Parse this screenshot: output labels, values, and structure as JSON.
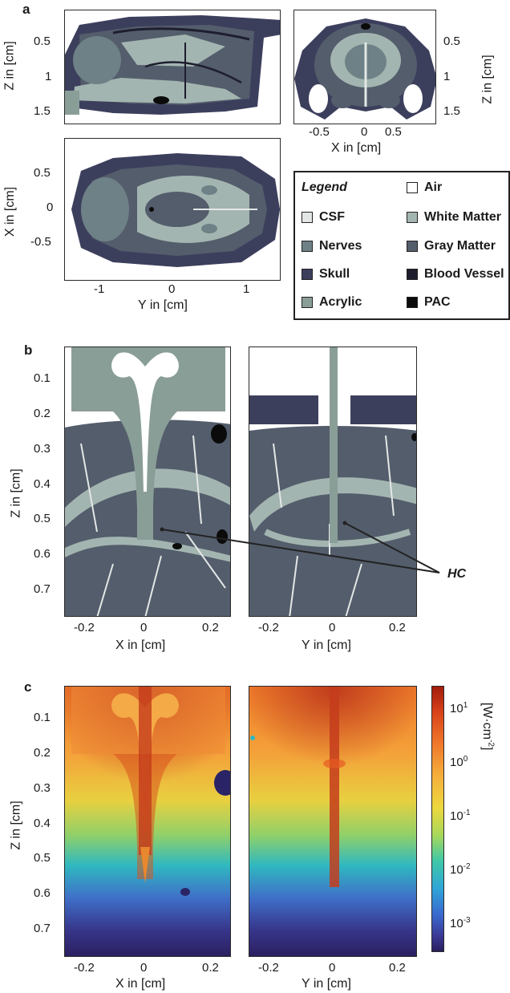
{
  "panels": {
    "a": {
      "letter": "a",
      "sagittal": {
        "yticks": [
          "0.5",
          "1",
          "1.5"
        ],
        "ylabel": "Z in [cm]"
      },
      "coronal": {
        "yticks": [
          "0.5",
          "1",
          "1.5"
        ],
        "ylabel": "Z in [cm]",
        "xticks": [
          "-0.5",
          "0",
          "0.5"
        ],
        "xlabel": "X in [cm]"
      },
      "axial": {
        "yticks": [
          "0.5",
          "0",
          "-0.5"
        ],
        "ylabel": "X in [cm]",
        "xticks": [
          "-1",
          "0",
          "1"
        ],
        "xlabel": "Y in [cm]"
      }
    },
    "b": {
      "letter": "b",
      "yticks": [
        "0.1",
        "0.2",
        "0.3",
        "0.4",
        "0.5",
        "0.6",
        "0.7"
      ],
      "ylabel": "Z in [cm]",
      "left_xticks": [
        "-0.2",
        "0",
        "0.2"
      ],
      "left_xlabel": "X in [cm]",
      "right_xticks": [
        "-0.2",
        "0",
        "0.2"
      ],
      "right_xlabel": "Y in [cm]",
      "annotation": "HC"
    },
    "c": {
      "letter": "c",
      "yticks": [
        "0.1",
        "0.2",
        "0.3",
        "0.4",
        "0.5",
        "0.6",
        "0.7"
      ],
      "ylabel": "Z in [cm]",
      "left_xticks": [
        "-0.2",
        "0",
        "0.2"
      ],
      "left_xlabel": "X in [cm]",
      "right_xticks": [
        "-0.2",
        "0",
        "0.2"
      ],
      "right_xlabel": "Y in [cm]",
      "colorbar": {
        "unit_base": "[W·cm",
        "unit_exp": "-2",
        "unit_close": "]",
        "ticks": [
          {
            "base": "10",
            "exp": "1"
          },
          {
            "base": "10",
            "exp": "0"
          },
          {
            "base": "10",
            "exp": "-1"
          },
          {
            "base": "10",
            "exp": "-2"
          },
          {
            "base": "10",
            "exp": "-3"
          }
        ]
      }
    }
  },
  "legend": {
    "title": "Legend",
    "items": [
      {
        "label": "Air",
        "color": "#ffffff"
      },
      {
        "label": "CSF",
        "color": "#e3e7e5"
      },
      {
        "label": "White Matter",
        "color": "#a3b5b0"
      },
      {
        "label": "Nerves",
        "color": "#6e8186"
      },
      {
        "label": "Gray Matter",
        "color": "#545d6c"
      },
      {
        "label": "Skull",
        "color": "#3c3f5c"
      },
      {
        "label": "Blood Vessel",
        "color": "#1e1e2e"
      },
      {
        "label": "Acrylic",
        "color": "#8a9e98"
      },
      {
        "label": "PAC",
        "color": "#0b0b0b"
      }
    ]
  }
}
